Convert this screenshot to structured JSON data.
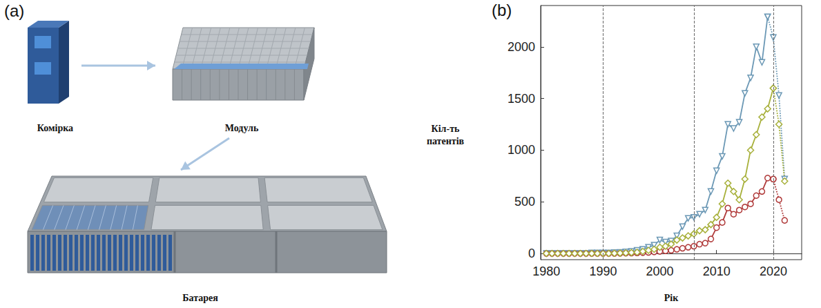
{
  "diagram": {
    "label": "(a)",
    "nodes": [
      {
        "label": "Комірка"
      },
      {
        "label": "Модуль"
      },
      {
        "label": "Батарея"
      }
    ]
  },
  "chart_data": {
    "type": "line",
    "label": "(b)",
    "x_label": "Рік",
    "y_label": "Кіл-ть патентів",
    "x": [
      1980,
      1981,
      1982,
      1983,
      1984,
      1985,
      1986,
      1987,
      1988,
      1989,
      1990,
      1991,
      1992,
      1993,
      1994,
      1995,
      1996,
      1997,
      1998,
      1999,
      2000,
      2001,
      2002,
      2003,
      2004,
      2005,
      2006,
      2007,
      2008,
      2009,
      2010,
      2011,
      2012,
      2013,
      2014,
      2015,
      2016,
      2017,
      2018,
      2019,
      2020,
      2021,
      2022
    ],
    "xlim": [
      1979,
      2025
    ],
    "xticks": [
      1980,
      1990,
      2000,
      2010,
      2020
    ],
    "ylim": [
      -60,
      2400
    ],
    "yticks": [
      0,
      500,
      1000,
      1500,
      2000
    ],
    "vlines": [
      1990,
      2006,
      2020
    ],
    "grid": false,
    "series": [
      {
        "color": "#6b98b5",
        "marker": "triangle-down",
        "line_style": "solid",
        "values": [
          0,
          0,
          0,
          0,
          0,
          0,
          0,
          0,
          5,
          5,
          5,
          5,
          8,
          10,
          15,
          20,
          30,
          40,
          60,
          80,
          130,
          110,
          120,
          170,
          260,
          340,
          350,
          380,
          420,
          600,
          800,
          940,
          1250,
          1210,
          1270,
          1550,
          1700,
          2000,
          1850,
          2290,
          null,
          null,
          null
        ]
      },
      {
        "color": "#6b98b5",
        "marker": "triangle-down",
        "line_style": "dotted",
        "values": [
          null,
          null,
          null,
          null,
          null,
          null,
          null,
          null,
          null,
          null,
          null,
          null,
          null,
          null,
          null,
          null,
          null,
          null,
          null,
          null,
          null,
          null,
          null,
          null,
          null,
          null,
          null,
          null,
          null,
          null,
          null,
          null,
          null,
          null,
          null,
          null,
          null,
          null,
          null,
          2290,
          2090,
          1530,
          720
        ]
      },
      {
        "color": "#b03a3a",
        "marker": "circle",
        "line_style": "solid",
        "values": [
          0,
          0,
          0,
          0,
          0,
          0,
          0,
          0,
          0,
          0,
          0,
          0,
          0,
          1,
          2,
          3,
          5,
          8,
          10,
          15,
          20,
          25,
          30,
          40,
          50,
          60,
          70,
          90,
          100,
          140,
          250,
          300,
          440,
          380,
          420,
          450,
          480,
          560,
          600,
          730,
          720,
          null,
          null
        ]
      },
      {
        "color": "#b03a3a",
        "marker": "circle",
        "line_style": "dotted",
        "values": [
          null,
          null,
          null,
          null,
          null,
          null,
          null,
          null,
          null,
          null,
          null,
          null,
          null,
          null,
          null,
          null,
          null,
          null,
          null,
          null,
          null,
          null,
          null,
          null,
          null,
          null,
          null,
          null,
          null,
          null,
          null,
          null,
          null,
          null,
          null,
          null,
          null,
          null,
          null,
          null,
          720,
          520,
          320
        ]
      },
      {
        "color": "#a7b03a",
        "marker": "diamond",
        "line_style": "solid",
        "values": [
          0,
          0,
          0,
          0,
          0,
          0,
          0,
          0,
          0,
          0,
          0,
          0,
          2,
          3,
          5,
          8,
          12,
          20,
          30,
          40,
          60,
          70,
          90,
          130,
          150,
          170,
          190,
          220,
          230,
          280,
          350,
          480,
          680,
          600,
          520,
          720,
          1000,
          1150,
          1320,
          1400,
          1600,
          null,
          null
        ]
      },
      {
        "color": "#a7b03a",
        "marker": "diamond",
        "line_style": "dotted",
        "values": [
          null,
          null,
          null,
          null,
          null,
          null,
          null,
          null,
          null,
          null,
          null,
          null,
          null,
          null,
          null,
          null,
          null,
          null,
          null,
          null,
          null,
          null,
          null,
          null,
          null,
          null,
          null,
          null,
          null,
          null,
          null,
          null,
          null,
          null,
          null,
          null,
          null,
          null,
          null,
          null,
          1600,
          1250,
          700
        ]
      }
    ]
  }
}
